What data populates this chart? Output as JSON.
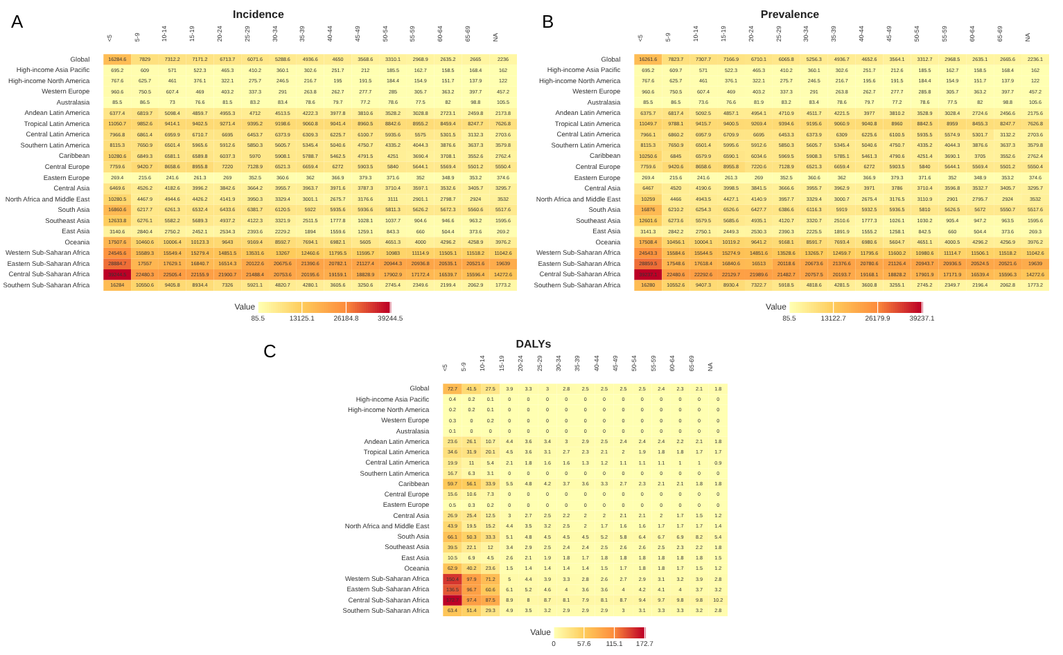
{
  "chart_data": [
    {
      "type": "heatmap",
      "title": "Incidence",
      "annotations": [
        "A"
      ],
      "clabel": "Value",
      "data_labels": true,
      "clim": [
        85.5,
        39244.5
      ],
      "cticks": [
        85.5,
        13125.1,
        26184.8,
        39244.5
      ],
      "categories": [
        "<5",
        "5-9",
        "10-14",
        "15-19",
        "20-24",
        "25-29",
        "30-34",
        "35-39",
        "40-44",
        "45-49",
        "50-54",
        "55-59",
        "60-64",
        "65-69",
        "NA"
      ],
      "y_categories": [
        "Global",
        "High-income Asia Pacific",
        "High-income North America",
        "Western Europe",
        "Australasia",
        "Andean Latin America",
        "Tropical Latin America",
        "Central Latin America",
        "Southern Latin America",
        "Caribbean",
        "Central Europe",
        "Eastern Europe",
        "Central Asia",
        "North Africa and Middle East",
        "South Asia",
        "Southeast Asia",
        "East Asia",
        "Oceania",
        "Western Sub-Saharan Africa",
        "Eastern Sub-Saharan Africa",
        "Central Sub-Saharan Africa",
        "Southern Sub-Saharan Africa"
      ],
      "cells": [
        [
          16284.6,
          7829.0,
          7312.2,
          7171.2,
          6713.7,
          6071.6,
          5288.6,
          4936.6,
          4650.0,
          3568.6,
          3310.1,
          2968.9,
          2635.2,
          2665.0,
          2236.0
        ],
        [
          695.2,
          609.0,
          571.0,
          522.3,
          465.3,
          410.2,
          360.1,
          302.6,
          251.7,
          212.0,
          185.5,
          162.7,
          158.5,
          168.4,
          162.0
        ],
        [
          767.6,
          625.7,
          461.0,
          376.1,
          322.1,
          275.7,
          246.5,
          216.7,
          195.0,
          191.5,
          184.4,
          154.9,
          151.7,
          137.9,
          122.0
        ],
        [
          960.6,
          750.5,
          607.4,
          469.0,
          403.2,
          337.3,
          291.0,
          263.8,
          262.7,
          277.7,
          285.0,
          305.7,
          363.2,
          397.7,
          457.2
        ],
        [
          85.5,
          86.5,
          73.0,
          76.6,
          81.5,
          83.2,
          83.4,
          78.6,
          79.7,
          77.2,
          78.6,
          77.5,
          82.0,
          98.8,
          105.5
        ],
        [
          6377.4,
          6819.7,
          5098.4,
          4859.7,
          4955.3,
          4712.0,
          4513.5,
          4222.3,
          3977.8,
          3810.6,
          3528.2,
          3028.8,
          2723.1,
          2459.8,
          2173.8
        ],
        [
          11050.7,
          9852.6,
          9414.1,
          9402.5,
          9271.4,
          9395.2,
          9198.6,
          9060.8,
          9041.4,
          8960.5,
          8842.6,
          8955.2,
          8459.4,
          8247.7,
          7626.8
        ],
        [
          7966.8,
          6861.4,
          6959.9,
          6710.7,
          6695.0,
          6453.7,
          6373.9,
          6309.3,
          6225.7,
          6100.7,
          5935.6,
          5575.0,
          5301.5,
          3132.3,
          2703.6
        ],
        [
          8115.3,
          7650.9,
          6501.4,
          5965.6,
          5912.6,
          5850.3,
          5605.7,
          5345.4,
          5040.6,
          4750.7,
          4335.2,
          4044.3,
          3876.6,
          3637.3,
          3579.8
        ],
        [
          10280.6,
          6849.3,
          6581.1,
          6589.8,
          6037.3,
          5970.0,
          5908.1,
          5788.7,
          5462.5,
          4791.5,
          4251.0,
          3690.4,
          3708.1,
          3552.6,
          2762.4
        ],
        [
          7759.6,
          9420.7,
          8658.6,
          8955.8,
          7220.0,
          7128.9,
          6521.3,
          6659.4,
          6272.0,
          5903.5,
          5840.0,
          5644.1,
          5569.4,
          5501.2,
          5550.4
        ],
        [
          269.4,
          215.6,
          241.6,
          261.3,
          269.0,
          352.5,
          360.6,
          362.0,
          366.9,
          379.3,
          371.6,
          352.0,
          348.9,
          353.2,
          374.6
        ],
        [
          6469.6,
          4526.2,
          4182.6,
          3996.2,
          3842.6,
          3664.2,
          3955.7,
          3963.7,
          3971.6,
          3787.3,
          3710.4,
          3597.1,
          3532.6,
          3405.7,
          3295.7
        ],
        [
          10280.5,
          4467.9,
          4944.6,
          4426.2,
          4141.9,
          3950.3,
          3329.4,
          3001.1,
          2675.7,
          3176.6,
          3111.0,
          2901.1,
          2798.7,
          2924.0,
          3532.0
        ],
        [
          16860.6,
          6217.7,
          6261.3,
          6532.4,
          6433.6,
          6381.7,
          6120.5,
          5922.0,
          5935.6,
          5936.6,
          5811.3,
          5626.2,
          5672.3,
          5560.6,
          5517.6
        ],
        [
          12633.8,
          6276.1,
          5582.2,
          5689.3,
          4937.2,
          4122.3,
          3321.9,
          2511.5,
          1777.8,
          1028.1,
          1037.7,
          904.6,
          946.6,
          963.2,
          1595.6
        ],
        [
          3140.6,
          2840.4,
          2750.2,
          2452.1,
          2534.3,
          2393.6,
          2229.2,
          1894.0,
          1559.6,
          1259.1,
          843.3,
          660.0,
          504.4,
          373.6,
          269.2
        ],
        [
          17507.6,
          10460.6,
          10006.4,
          10123.3,
          9643.0,
          9169.4,
          8592.7,
          7694.1,
          6982.1,
          5605.0,
          4651.3,
          4000.0,
          4296.2,
          4258.9,
          3976.2
        ],
        [
          24545.6,
          15589.3,
          15549.4,
          15279.4,
          14851.5,
          13531.6,
          13267.0,
          12460.6,
          11795.5,
          11595.7,
          10983.0,
          11114.9,
          11505.1,
          11518.2,
          11042.6
        ],
        [
          28884.7,
          17557.0,
          17629.1,
          16840.7,
          16514.3,
          20122.6,
          20675.6,
          21390.6,
          20782.1,
          21127.4,
          20944.3,
          20936.8,
          20535.1,
          20521.6,
          19639.0
        ],
        [
          39244.5,
          22480.3,
          22505.4,
          22155.9,
          21900.7,
          21488.4,
          20753.6,
          20195.6,
          19159.1,
          18828.9,
          17902.9,
          17172.4,
          16539.7,
          15596.4,
          14272.6
        ],
        [
          16284.0,
          10550.6,
          9405.8,
          8934.4,
          7326.0,
          5921.1,
          4820.7,
          4280.1,
          3605.6,
          3250.6,
          2745.4,
          2349.6,
          2199.4,
          2062.9,
          1773.2
        ]
      ]
    },
    {
      "type": "heatmap",
      "title": "Prevalence",
      "annotations": [
        "B"
      ],
      "clabel": "Value",
      "data_labels": true,
      "clim": [
        85.5,
        39237.1
      ],
      "cticks": [
        85.5,
        13122.7,
        26179.9,
        39237.1
      ],
      "categories": [
        "<5",
        "5-9",
        "10-14",
        "15-19",
        "20-24",
        "25-29",
        "30-34",
        "35-39",
        "40-44",
        "45-49",
        "50-54",
        "55-59",
        "60-64",
        "65-69",
        "NA"
      ],
      "y_categories": [
        "Global",
        "High-income Asia Pacific",
        "High-income North America",
        "Western Europe",
        "Australasia",
        "Andean Latin America",
        "Tropical Latin America",
        "Central Latin America",
        "Southern Latin America",
        "Caribbean",
        "Central Europe",
        "Eastern Europe",
        "Central Asia",
        "North Africa and Middle East",
        "South Asia",
        "Southeast Asia",
        "East Asia",
        "Oceania",
        "Western Sub-Saharan Africa",
        "Eastern Sub-Saharan Africa",
        "Central Sub-Saharan Africa",
        "Southern Sub-Saharan Africa"
      ],
      "cells": [
        [
          16261.6,
          7823.7,
          7307.7,
          7166.9,
          6710.1,
          6065.8,
          5256.3,
          4936.7,
          4652.6,
          3564.1,
          3312.7,
          2968.5,
          2635.1,
          2665.6,
          2236.1
        ],
        [
          695.2,
          609.7,
          571.0,
          522.3,
          465.3,
          410.2,
          360.1,
          302.6,
          251.7,
          212.6,
          185.5,
          162.7,
          158.5,
          168.4,
          162.0
        ],
        [
          767.6,
          625.7,
          461.0,
          376.1,
          322.1,
          275.7,
          246.5,
          216.7,
          195.6,
          191.5,
          184.4,
          154.9,
          151.7,
          137.9,
          122.0
        ],
        [
          960.6,
          750.5,
          607.4,
          469.0,
          403.2,
          337.3,
          291.0,
          263.8,
          262.7,
          277.7,
          285.8,
          305.7,
          363.2,
          397.7,
          457.2
        ],
        [
          85.5,
          86.5,
          73.6,
          76.6,
          81.9,
          83.2,
          83.4,
          78.6,
          79.7,
          77.2,
          78.6,
          77.5,
          82.0,
          98.8,
          105.6
        ],
        [
          6375.7,
          6817.4,
          5092.5,
          4857.1,
          4954.1,
          4710.9,
          4511.7,
          4221.5,
          3977.0,
          3810.2,
          3528.9,
          3028.4,
          2724.6,
          2456.6,
          2175.6
        ],
        [
          11049.7,
          9788.1,
          9415.7,
          9400.5,
          9269.4,
          9394.6,
          9195.6,
          9060.9,
          9040.8,
          8960.0,
          8842.5,
          8959.0,
          8455.3,
          8247.7,
          7626.8
        ],
        [
          7966.1,
          6860.2,
          6957.9,
          6709.9,
          6695.0,
          6453.3,
          6373.9,
          6309.0,
          6225.6,
          6100.5,
          5935.5,
          5574.9,
          5301.7,
          3132.2,
          2703.6
        ],
        [
          8115.3,
          7650.9,
          6501.4,
          5995.6,
          5912.6,
          5850.3,
          5605.7,
          5345.4,
          5040.6,
          4750.7,
          4335.2,
          4044.3,
          3876.6,
          3637.3,
          3579.8
        ],
        [
          10250.6,
          6845.0,
          6579.9,
          6590.1,
          6034.6,
          5969.5,
          5908.3,
          5785.1,
          5461.3,
          4790.6,
          4251.4,
          3690.1,
          3705.0,
          3552.6,
          2762.4
        ],
        [
          7759.6,
          9420.6,
          8658.6,
          8955.8,
          7220.6,
          7128.9,
          6521.3,
          6659.4,
          6272.0,
          5903.5,
          5840.0,
          5644.1,
          5569.4,
          5501.2,
          5550.4
        ],
        [
          269.4,
          215.6,
          241.6,
          261.3,
          269.0,
          352.5,
          360.6,
          362.0,
          366.9,
          379.3,
          371.6,
          352.0,
          348.9,
          353.2,
          374.6
        ],
        [
          6467.0,
          4520.0,
          4190.6,
          3998.5,
          3841.5,
          3666.6,
          3955.7,
          3962.9,
          3971.0,
          3786.0,
          3710.4,
          3596.8,
          3532.7,
          3405.7,
          3295.7
        ],
        [
          10259.0,
          4466.0,
          4943.5,
          4427.1,
          4140.9,
          3957.7,
          3329.4,
          3000.7,
          2675.4,
          3176.5,
          3110.9,
          2901.0,
          2795.7,
          2924.0,
          3532.0
        ],
        [
          16876.0,
          6210.2,
          6254.3,
          6526.6,
          6427.7,
          6386.6,
          6116.3,
          5919.0,
          5932.5,
          5936.5,
          5810.0,
          5626.5,
          5672.0,
          5550.7,
          5517.6
        ],
        [
          12601.6,
          6273.6,
          5579.5,
          5685.6,
          4935.1,
          4120.7,
          3320.7,
          2510.6,
          1777.3,
          1026.1,
          1030.2,
          905.4,
          947.2,
          963.5,
          1595.6
        ],
        [
          3141.3,
          2842.2,
          2750.1,
          2449.3,
          2530.3,
          2390.3,
          2225.5,
          1891.9,
          1555.2,
          1258.1,
          842.5,
          660.0,
          504.4,
          373.6,
          269.3
        ],
        [
          17508.4,
          10456.1,
          10004.1,
          10119.2,
          9641.2,
          9168.1,
          8591.7,
          7693.4,
          6980.6,
          5604.7,
          4651.1,
          4000.5,
          4296.2,
          4256.9,
          3976.2
        ],
        [
          24543.3,
          15584.6,
          15544.5,
          15274.9,
          14851.6,
          13528.6,
          13265.7,
          12459.7,
          11795.6,
          11600.2,
          10980.6,
          11114.7,
          11506.1,
          11518.2,
          11042.6
        ],
        [
          28859.5,
          17548.6,
          17618.4,
          16840.6,
          16513.0,
          20118.6,
          20673.6,
          21376.6,
          20780.6,
          21126.4,
          20943.7,
          20936.5,
          20524.5,
          20521.6,
          19639.0
        ],
        [
          39237.1,
          22480.6,
          22292.6,
          22129.7,
          21989.6,
          21482.7,
          20757.5,
          20193.7,
          19168.1,
          18828.2,
          17901.9,
          17171.9,
          16539.4,
          15596.3,
          14272.6
        ],
        [
          16280.0,
          10552.6,
          9407.3,
          8930.4,
          7322.7,
          5918.5,
          4818.6,
          4281.5,
          3600.8,
          3255.1,
          2745.2,
          2349.7,
          2196.4,
          2062.8,
          1773.2
        ]
      ]
    },
    {
      "type": "heatmap",
      "title": "DALYs",
      "annotations": [
        "C"
      ],
      "clabel": "Value",
      "data_labels": true,
      "clim": [
        0,
        172.7
      ],
      "cticks": [
        0,
        57.6,
        115.1,
        172.7
      ],
      "categories": [
        "<5",
        "5-9",
        "10-14",
        "15-19",
        "20-24",
        "25-29",
        "30-34",
        "35-39",
        "40-44",
        "45-49",
        "50-54",
        "55-59",
        "60-64",
        "65-69",
        "NA"
      ],
      "y_categories": [
        "Global",
        "High-income Asia Pacific",
        "High-income North America",
        "Western Europe",
        "Australasia",
        "Andean Latin America",
        "Tropical Latin America",
        "Central Latin America",
        "Southern Latin America",
        "Caribbean",
        "Central Europe",
        "Eastern Europe",
        "Central Asia",
        "North Africa and Middle East",
        "South Asia",
        "Southeast Asia",
        "East Asia",
        "Oceania",
        "Western Sub-Saharan Africa",
        "Eastern Sub-Saharan Africa",
        "Central Sub-Saharan Africa",
        "Southern Sub-Saharan Africa"
      ],
      "cells": [
        [
          72.7,
          41.5,
          27.5,
          3.9,
          3.3,
          3.0,
          2.8,
          2.5,
          2.5,
          2.5,
          2.5,
          2.4,
          2.3,
          2.1,
          1.8
        ],
        [
          0.4,
          0.2,
          0.1,
          0.0,
          0.0,
          0.0,
          0.0,
          0.0,
          0.0,
          0.0,
          0.0,
          0.0,
          0.0,
          0.0,
          0.0
        ],
        [
          0.2,
          0.2,
          0.1,
          0.0,
          0.0,
          0.0,
          0.0,
          0.0,
          0.0,
          0.0,
          0.0,
          0.0,
          0.0,
          0.0,
          0.0
        ],
        [
          0.3,
          0.0,
          0.2,
          0.0,
          0.0,
          0.0,
          0.0,
          0.0,
          0.0,
          0.0,
          0.0,
          0.0,
          0.0,
          0.0,
          0.0
        ],
        [
          0.1,
          0.0,
          0.0,
          0.0,
          0.0,
          0.0,
          0.0,
          0.0,
          0.0,
          0.0,
          0.0,
          0.0,
          0.0,
          0.0,
          0.0
        ],
        [
          23.6,
          26.1,
          10.7,
          4.4,
          3.6,
          3.4,
          3.0,
          2.9,
          2.5,
          2.4,
          2.4,
          2.4,
          2.2,
          2.1,
          1.8
        ],
        [
          34.6,
          31.9,
          20.1,
          4.5,
          3.6,
          3.1,
          2.7,
          2.3,
          2.1,
          2.0,
          1.9,
          1.8,
          1.8,
          1.7,
          1.7
        ],
        [
          19.9,
          11.0,
          5.4,
          2.1,
          1.8,
          1.6,
          1.6,
          1.3,
          1.2,
          1.1,
          1.1,
          1.1,
          1.0,
          1.0,
          0.9
        ],
        [
          16.7,
          6.3,
          3.1,
          0.0,
          0.0,
          0.0,
          0.0,
          0.0,
          0.0,
          0.0,
          0.0,
          0.0,
          0.0,
          0.0,
          0.0
        ],
        [
          59.7,
          56.1,
          33.9,
          5.5,
          4.8,
          4.2,
          3.7,
          3.6,
          3.3,
          2.7,
          2.3,
          2.1,
          2.1,
          1.8,
          1.8
        ],
        [
          15.6,
          10.6,
          7.3,
          0.0,
          0.0,
          0.0,
          0.0,
          0.0,
          0.0,
          0.0,
          0.0,
          0.0,
          0.0,
          0.0,
          0.0
        ],
        [
          0.5,
          0.3,
          0.2,
          0.0,
          0.0,
          0.0,
          0.0,
          0.0,
          0.0,
          0.0,
          0.0,
          0.0,
          0.0,
          0.0,
          0.0
        ],
        [
          26.9,
          25.4,
          12.5,
          3.0,
          2.7,
          2.5,
          2.2,
          2.0,
          2.0,
          2.1,
          2.1,
          2.0,
          1.7,
          1.5,
          1.2
        ],
        [
          43.9,
          19.5,
          15.2,
          4.4,
          3.5,
          3.2,
          2.5,
          2.0,
          1.7,
          1.6,
          1.6,
          1.7,
          1.7,
          1.7,
          1.4
        ],
        [
          66.1,
          50.3,
          33.3,
          5.1,
          4.8,
          4.5,
          4.5,
          4.5,
          5.2,
          5.8,
          6.4,
          6.7,
          6.9,
          8.2,
          5.4
        ],
        [
          39.5,
          22.1,
          12.0,
          3.4,
          2.9,
          2.5,
          2.4,
          2.4,
          2.5,
          2.6,
          2.6,
          2.5,
          2.3,
          2.2,
          1.8
        ],
        [
          10.5,
          6.9,
          4.5,
          2.6,
          2.1,
          1.9,
          1.8,
          1.7,
          1.8,
          1.8,
          1.8,
          1.8,
          1.8,
          1.8,
          1.5
        ],
        [
          62.9,
          40.2,
          23.6,
          1.5,
          1.4,
          1.4,
          1.4,
          1.4,
          1.5,
          1.7,
          1.8,
          1.8,
          1.7,
          1.5,
          1.2
        ],
        [
          150.4,
          97.9,
          71.2,
          5.0,
          4.4,
          3.9,
          3.3,
          2.8,
          2.6,
          2.7,
          2.9,
          3.1,
          3.2,
          3.9,
          2.8
        ],
        [
          136.5,
          96.7,
          60.6,
          6.1,
          5.2,
          4.6,
          4.0,
          3.6,
          3.6,
          4.0,
          4.2,
          4.1,
          4.0,
          3.7,
          3.2
        ],
        [
          172.7,
          97.4,
          87.5,
          8.9,
          8.0,
          8.7,
          8.1,
          7.9,
          8.1,
          8.7,
          9.4,
          9.7,
          9.8,
          9.8,
          10.2
        ],
        [
          63.4,
          51.4,
          29.3,
          4.9,
          3.5,
          3.2,
          2.9,
          2.9,
          2.9,
          3.0,
          3.1,
          3.3,
          3.3,
          3.2,
          2.8
        ]
      ]
    }
  ]
}
